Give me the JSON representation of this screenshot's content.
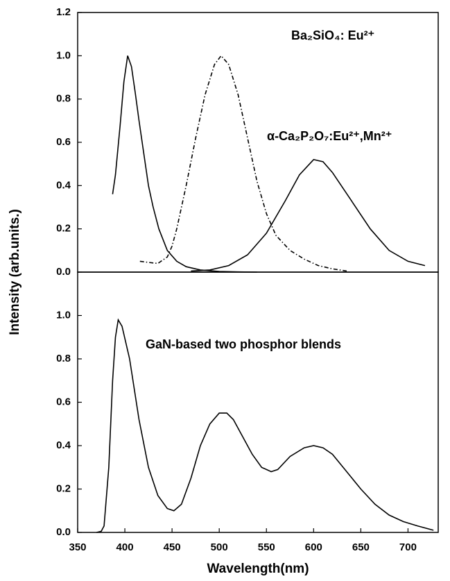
{
  "chart_data": [
    {
      "type": "line",
      "ylabel": "Intensity (arb.units.)",
      "xlim": [
        350,
        732
      ],
      "ylim": [
        0,
        1.2
      ],
      "yticks": [
        {
          "value": 0,
          "label": "0.0"
        },
        0.2,
        0.4,
        0.6,
        0.8,
        {
          "value": 1,
          "label": "1.0"
        },
        {
          "value": 1.2,
          "label": "1.2"
        }
      ],
      "annotations": [
        "Ba₂SiO₄: Eu²⁺",
        "α-Ca₂P₂O₇:Eu²⁺,Mn²⁺"
      ],
      "series": [
        {
          "color": "#000000",
          "style": "solid",
          "x": [
            387,
            390,
            395,
            399,
            403,
            407,
            411,
            415,
            420,
            425,
            430,
            436,
            445,
            455,
            465,
            480,
            500,
            520,
            540
          ],
          "values": [
            0.36,
            0.45,
            0.68,
            0.88,
            1.0,
            0.95,
            0.83,
            0.7,
            0.55,
            0.4,
            0.3,
            0.2,
            0.1,
            0.05,
            0.025,
            0.01,
            0.003,
            0.001,
            0
          ]
        },
        {
          "color": "#000000",
          "style": "dashdot",
          "x": [
            416,
            425,
            435,
            445,
            450,
            455,
            465,
            475,
            485,
            495,
            502,
            510,
            520,
            530,
            540,
            550,
            560,
            575,
            590,
            605,
            620,
            635
          ],
          "values": [
            0.05,
            0.045,
            0.04,
            0.07,
            0.12,
            0.2,
            0.4,
            0.62,
            0.82,
            0.96,
            1.0,
            0.96,
            0.82,
            0.62,
            0.42,
            0.27,
            0.17,
            0.1,
            0.06,
            0.03,
            0.015,
            0.005
          ]
        },
        {
          "color": "#000000",
          "style": "solid",
          "x": [
            470,
            490,
            510,
            530,
            550,
            570,
            585,
            600,
            610,
            620,
            640,
            660,
            680,
            700,
            718
          ],
          "values": [
            0.005,
            0.01,
            0.03,
            0.08,
            0.18,
            0.33,
            0.45,
            0.52,
            0.51,
            0.46,
            0.33,
            0.2,
            0.1,
            0.05,
            0.03
          ]
        }
      ]
    },
    {
      "type": "line",
      "xlabel": "Wavelength(nm)",
      "xlim": [
        350,
        732
      ],
      "ylim": [
        0,
        1.2
      ],
      "xticks": [
        350,
        400,
        450,
        500,
        550,
        600,
        650,
        700
      ],
      "yticks": [
        {
          "value": 0,
          "label": "0.0"
        },
        0.2,
        0.4,
        0.6,
        0.8,
        {
          "value": 1,
          "label": "1.0"
        }
      ],
      "annotations": [
        "GaN-based two phosphor blends"
      ],
      "series": [
        {
          "color": "#000000",
          "style": "solid",
          "x": [
            370,
            375,
            378,
            383,
            387,
            390,
            393,
            397,
            405,
            415,
            425,
            435,
            445,
            452,
            460,
            470,
            480,
            490,
            500,
            508,
            515,
            525,
            535,
            545,
            555,
            562,
            575,
            590,
            600,
            610,
            620,
            635,
            650,
            665,
            680,
            695,
            710,
            727
          ],
          "values": [
            0,
            0.005,
            0.03,
            0.3,
            0.7,
            0.9,
            0.98,
            0.95,
            0.8,
            0.52,
            0.3,
            0.17,
            0.11,
            0.1,
            0.13,
            0.25,
            0.4,
            0.5,
            0.55,
            0.55,
            0.52,
            0.44,
            0.36,
            0.3,
            0.28,
            0.29,
            0.35,
            0.39,
            0.4,
            0.39,
            0.36,
            0.28,
            0.2,
            0.13,
            0.08,
            0.05,
            0.03,
            0.01
          ]
        }
      ]
    }
  ]
}
